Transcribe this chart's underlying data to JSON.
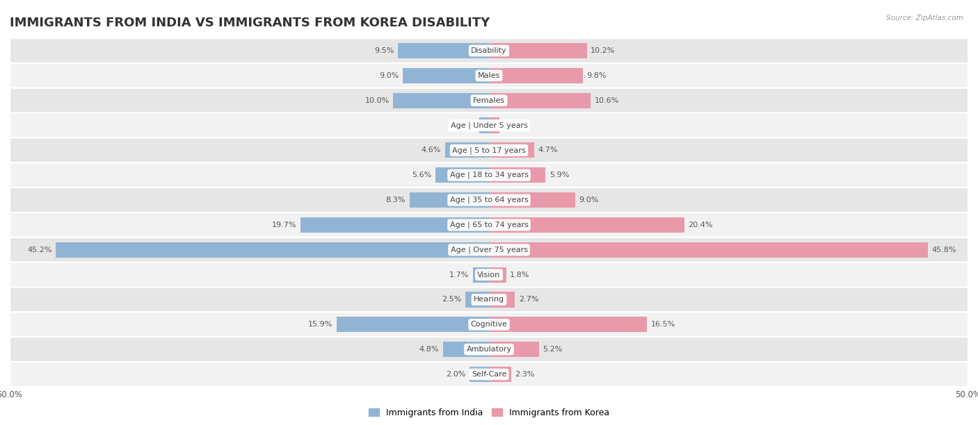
{
  "title": "IMMIGRANTS FROM INDIA VS IMMIGRANTS FROM KOREA DISABILITY",
  "source": "Source: ZipAtlas.com",
  "categories": [
    "Disability",
    "Males",
    "Females",
    "Age | Under 5 years",
    "Age | 5 to 17 years",
    "Age | 18 to 34 years",
    "Age | 35 to 64 years",
    "Age | 65 to 74 years",
    "Age | Over 75 years",
    "Vision",
    "Hearing",
    "Cognitive",
    "Ambulatory",
    "Self-Care"
  ],
  "india_values": [
    9.5,
    9.0,
    10.0,
    1.0,
    4.6,
    5.6,
    8.3,
    19.7,
    45.2,
    1.7,
    2.5,
    15.9,
    4.8,
    2.0
  ],
  "korea_values": [
    10.2,
    9.8,
    10.6,
    1.1,
    4.7,
    5.9,
    9.0,
    20.4,
    45.8,
    1.8,
    2.7,
    16.5,
    5.2,
    2.3
  ],
  "india_color": "#92b4d4",
  "korea_color": "#e899aa",
  "india_label": "Immigrants from India",
  "korea_label": "Immigrants from Korea",
  "axis_limit": 50.0,
  "row_bg_light": "#f2f2f2",
  "row_bg_dark": "#e6e6e6",
  "title_fontsize": 13,
  "label_fontsize": 8.0,
  "value_fontsize": 8.0,
  "bar_height": 0.62
}
